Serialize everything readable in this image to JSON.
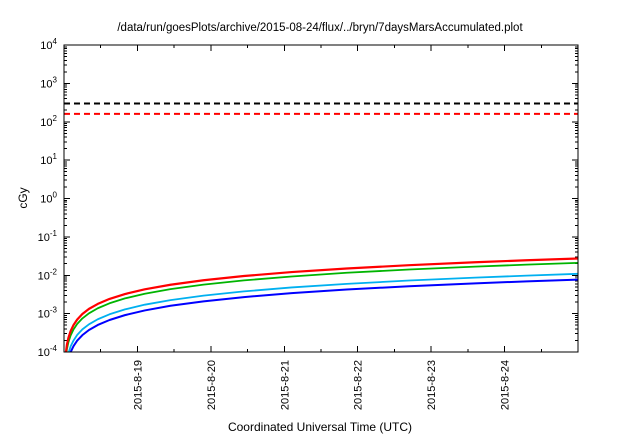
{
  "page": {
    "background": "#ffffff"
  },
  "chart_data": {
    "type": "line",
    "title": "/data/run/goesPlots/archive/2015-08-24/flux/../bryn/7daysMarsAccumulated.plot",
    "xlabel": "Coordinated Universal Time (UTC)",
    "ylabel": "cGy",
    "y_scale": "log",
    "ylim_exponents": [
      -4,
      4
    ],
    "y_tick_exponents": [
      4,
      3,
      2,
      1,
      0,
      -1,
      -2,
      -3,
      -4
    ],
    "x_domain_days": [
      0,
      7
    ],
    "x_ticks": [
      {
        "t": 1,
        "label": "2015-8-19"
      },
      {
        "t": 2,
        "label": "2015-8-20"
      },
      {
        "t": 3,
        "label": "2015-8-21"
      },
      {
        "t": 4,
        "label": "2015-8-22"
      },
      {
        "t": 5,
        "label": "2015-8-23"
      },
      {
        "t": 6,
        "label": "2015-8-24"
      }
    ],
    "x_minor_tick_step_days": 0.5,
    "grid": false,
    "legend": "none",
    "reference_lines": [
      {
        "name": "black-dashed-limit",
        "value": 300,
        "color": "#000000",
        "style": "dashed"
      },
      {
        "name": "red-dashed-limit",
        "value": 160,
        "color": "#ff0000",
        "style": "dashed"
      }
    ],
    "t_days": [
      0.02,
      0.04,
      0.06,
      0.09,
      0.13,
      0.18,
      0.25,
      0.34,
      0.46,
      0.62,
      0.83,
      1.1,
      1.45,
      1.9,
      2.45,
      3.1,
      3.85,
      4.7,
      5.6,
      6.3,
      7.0
    ],
    "series": [
      {
        "name": "blue-accumulated-dose",
        "color": "#0000ff",
        "width": 2,
        "values": [
          2.2e-05,
          4.4e-05,
          6.6e-05,
          9.9e-05,
          0.000143,
          0.000198,
          0.000275,
          0.000374,
          0.000506,
          0.000682,
          0.000913,
          0.00121,
          0.0016,
          0.00209,
          0.0027,
          0.00341,
          0.00424,
          0.00517,
          0.00616,
          0.00693,
          0.0077
        ]
      },
      {
        "name": "cyan-accumulated-dose",
        "color": "#00b0f0",
        "width": 1.8,
        "values": [
          3.1e-05,
          6.2e-05,
          9.3e-05,
          0.00014,
          0.0002,
          0.00028,
          0.000388,
          0.000527,
          0.000713,
          0.000961,
          0.00129,
          0.00171,
          0.00225,
          0.00295,
          0.0038,
          0.00481,
          0.00597,
          0.00729,
          0.00868,
          0.00977,
          0.0109
        ]
      },
      {
        "name": "green-accumulated-dose",
        "color": "#00b400",
        "width": 1.8,
        "values": [
          6e-05,
          0.00012,
          0.00018,
          0.00027,
          0.00039,
          0.00054,
          0.00075,
          0.00102,
          0.00138,
          0.00186,
          0.00249,
          0.0033,
          0.00435,
          0.0057,
          0.00735,
          0.0093,
          0.0116,
          0.0141,
          0.0168,
          0.0189,
          0.021
        ]
      },
      {
        "name": "red-accumulated-dose",
        "color": "#ff0000",
        "width": 2.2,
        "values": [
          7.8e-05,
          0.000156,
          0.000234,
          0.000351,
          0.000507,
          0.000702,
          0.000975,
          0.00133,
          0.00179,
          0.00242,
          0.00324,
          0.00429,
          0.00566,
          0.00741,
          0.00956,
          0.0121,
          0.015,
          0.0183,
          0.0218,
          0.0246,
          0.0273
        ]
      }
    ]
  }
}
